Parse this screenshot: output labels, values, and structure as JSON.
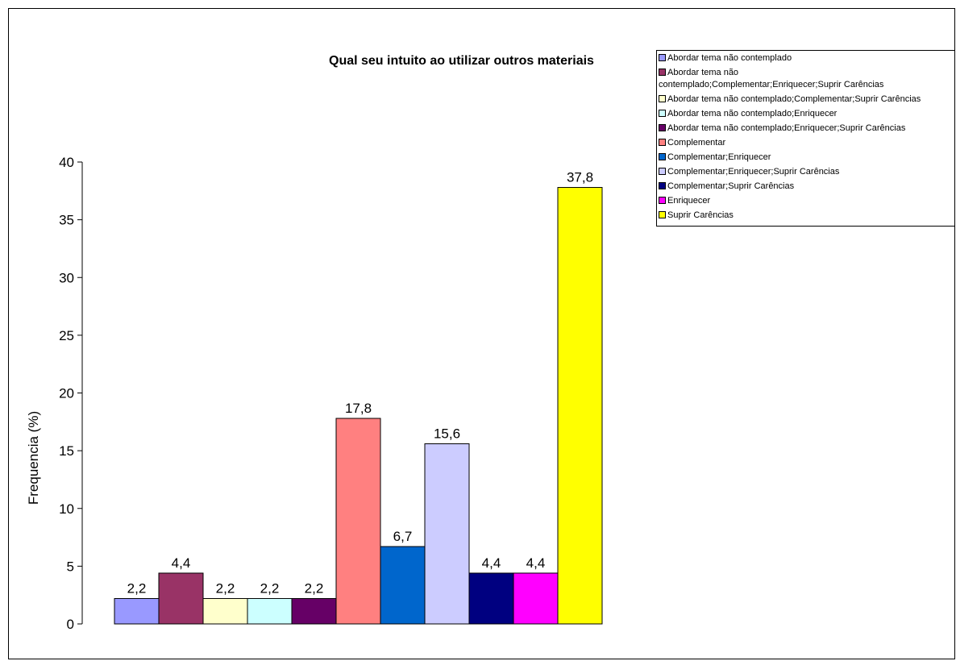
{
  "chart_data": {
    "type": "bar",
    "title": "Qual seu intuito ao utilizar outros materiais",
    "xlabel": "",
    "ylabel": "Frequencia (%)",
    "ylim": [
      0,
      40
    ],
    "yticks": [
      "0",
      "5",
      "10",
      "15",
      "20",
      "25",
      "30",
      "35",
      "40"
    ],
    "legend_position": "top-right",
    "grid": false,
    "series": [
      {
        "name": "Abordar tema não contemplado",
        "value": 2.2,
        "label": "2,2",
        "color": "#9999ff"
      },
      {
        "name": "Abordar tema não contemplado;Complementar;Enriquecer;Suprir Carências",
        "value": 4.4,
        "label": "4,4",
        "color": "#993366"
      },
      {
        "name": "Abordar tema não contemplado;Complementar;Suprir Carências",
        "value": 2.2,
        "label": "2,2",
        "color": "#ffffcc"
      },
      {
        "name": "Abordar tema não contemplado;Enriquecer",
        "value": 2.2,
        "label": "2,2",
        "color": "#ccffff"
      },
      {
        "name": "Abordar tema não contemplado;Enriquecer;Suprir Carências",
        "value": 2.2,
        "label": "2,2",
        "color": "#660066"
      },
      {
        "name": "Complementar",
        "value": 17.8,
        "label": "17,8",
        "color": "#ff8080"
      },
      {
        "name": "Complementar;Enriquecer",
        "value": 6.7,
        "label": "6,7",
        "color": "#0066cc"
      },
      {
        "name": "Complementar;Enriquecer;Suprir Carências",
        "value": 15.6,
        "label": "15,6",
        "color": "#ccccff"
      },
      {
        "name": "Complementar;Suprir Carências",
        "value": 4.4,
        "label": "4,4",
        "color": "#000080"
      },
      {
        "name": "Enriquecer",
        "value": 4.4,
        "label": "4,4",
        "color": "#ff00ff"
      },
      {
        "name": "Suprir Carências",
        "value": 37.8,
        "label": "37,8",
        "color": "#ffff00"
      }
    ],
    "legend_lines": [
      [
        "Abordar tema não contemplado"
      ],
      [
        "Abordar tema não",
        "contemplado;Complementar;Enriquecer;Suprir Carências"
      ],
      [
        "Abordar tema não contemplado;Complementar;Suprir Carências"
      ],
      [
        "Abordar tema não contemplado;Enriquecer"
      ],
      [
        "Abordar tema não contemplado;Enriquecer;Suprir Carências"
      ],
      [
        "Complementar"
      ],
      [
        "Complementar;Enriquecer"
      ],
      [
        "Complementar;Enriquecer;Suprir Carências"
      ],
      [
        "Complementar;Suprir Carências"
      ],
      [
        "Enriquecer"
      ],
      [
        "Suprir Carências"
      ]
    ]
  }
}
